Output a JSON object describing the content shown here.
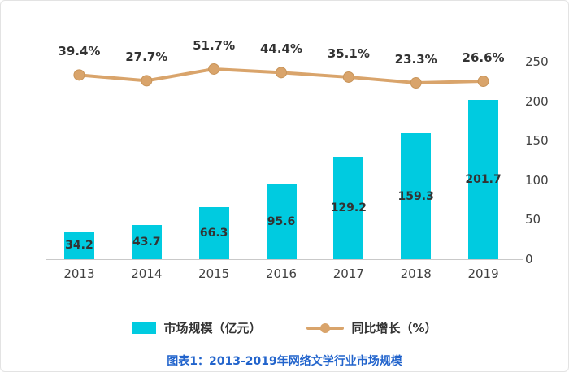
{
  "chart_data": {
    "type": "bar",
    "title": "图表1：2013-2019年网络文学行业市场规模",
    "categories": [
      "2013",
      "2014",
      "2015",
      "2016",
      "2017",
      "2018",
      "2019"
    ],
    "series": [
      {
        "name": "市场规模（亿元）",
        "type": "bar",
        "color": "#00cbe0",
        "values": [
          34.2,
          43.7,
          66.3,
          95.6,
          129.2,
          159.3,
          201.7
        ],
        "labels": [
          "34.2",
          "43.7",
          "66.3",
          "95.6",
          "129.2",
          "159.3",
          "201.7"
        ]
      },
      {
        "name": "同比增长（%）",
        "type": "line",
        "color": "#d9a46b",
        "values": [
          39.4,
          27.7,
          51.7,
          44.4,
          35.1,
          23.3,
          26.6
        ],
        "labels": [
          "39.4%",
          "27.7%",
          "51.7%",
          "44.4%",
          "35.1%",
          "23.3%",
          "26.6%"
        ]
      }
    ],
    "right_axis": {
      "ticks": [
        "0",
        "50",
        "100",
        "150",
        "200",
        "250"
      ],
      "min": 0,
      "max": 250
    },
    "xlabel": "",
    "ylabel": "",
    "legend_position": "bottom",
    "grid": false
  },
  "colors": {
    "bar": "#00cbe0",
    "line": "#d9a46b",
    "marker_stroke": "#c89459",
    "data_label": "#333333",
    "axis_label": "#404040",
    "caption": "#2264cc",
    "axis_line": "#c9c9c9"
  }
}
